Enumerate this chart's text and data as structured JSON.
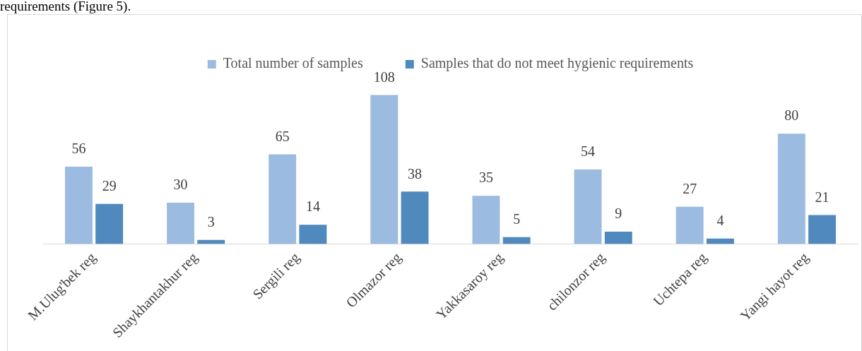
{
  "chart_data": {
    "type": "bar",
    "categories": [
      "M.Ulug'bek reg",
      "Shaykhantakhur reg",
      "Sergili reg",
      "Olmazor reg",
      "Yakkasaroy reg",
      "chilonzor reg",
      "Uchtepa reg",
      "Yangi hayot reg"
    ],
    "series": [
      {
        "name": "Total number of samples",
        "color": "#9bbbe0",
        "values": [
          56,
          30,
          65,
          108,
          35,
          54,
          27,
          80
        ]
      },
      {
        "name": "Samples that do not meet hygienic requirements",
        "color": "#4f89bd",
        "values": [
          29,
          3,
          14,
          38,
          5,
          9,
          4,
          21
        ]
      }
    ],
    "data_labels": true,
    "legend": "top",
    "grid": false,
    "tick_labels": "x",
    "annotations": [
      "requirements (Figure 5)."
    ]
  }
}
